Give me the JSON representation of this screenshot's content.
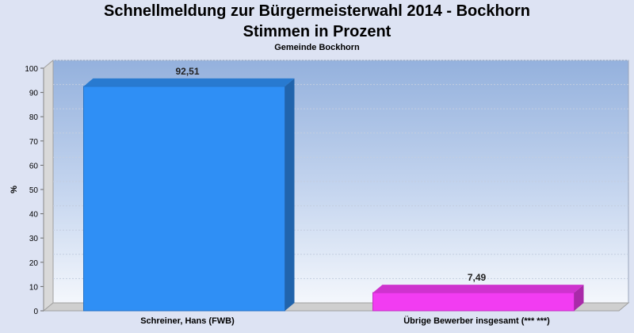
{
  "chart_data": {
    "type": "bar",
    "title": "Schnellmeldung zur Bürgermeisterwahl 2014 - Bockhorn",
    "title2": "Stimmen in Prozent",
    "subtitle": "Gemeinde Bockhorn",
    "ylabel": "%",
    "xlabel": "",
    "ylim": [
      0,
      100
    ],
    "yticks": [
      0,
      10,
      20,
      30,
      40,
      50,
      60,
      70,
      80,
      90,
      100
    ],
    "categories": [
      "Schreiner, Hans (FWB)",
      "Übrige Bewerber insgesamt (***  ***)"
    ],
    "values": [
      92.51,
      7.49
    ],
    "value_labels": [
      "92,51",
      "7,49"
    ],
    "colors": [
      "#2f8ff5",
      "#f23cf2"
    ],
    "grid": true,
    "legend": "none"
  }
}
